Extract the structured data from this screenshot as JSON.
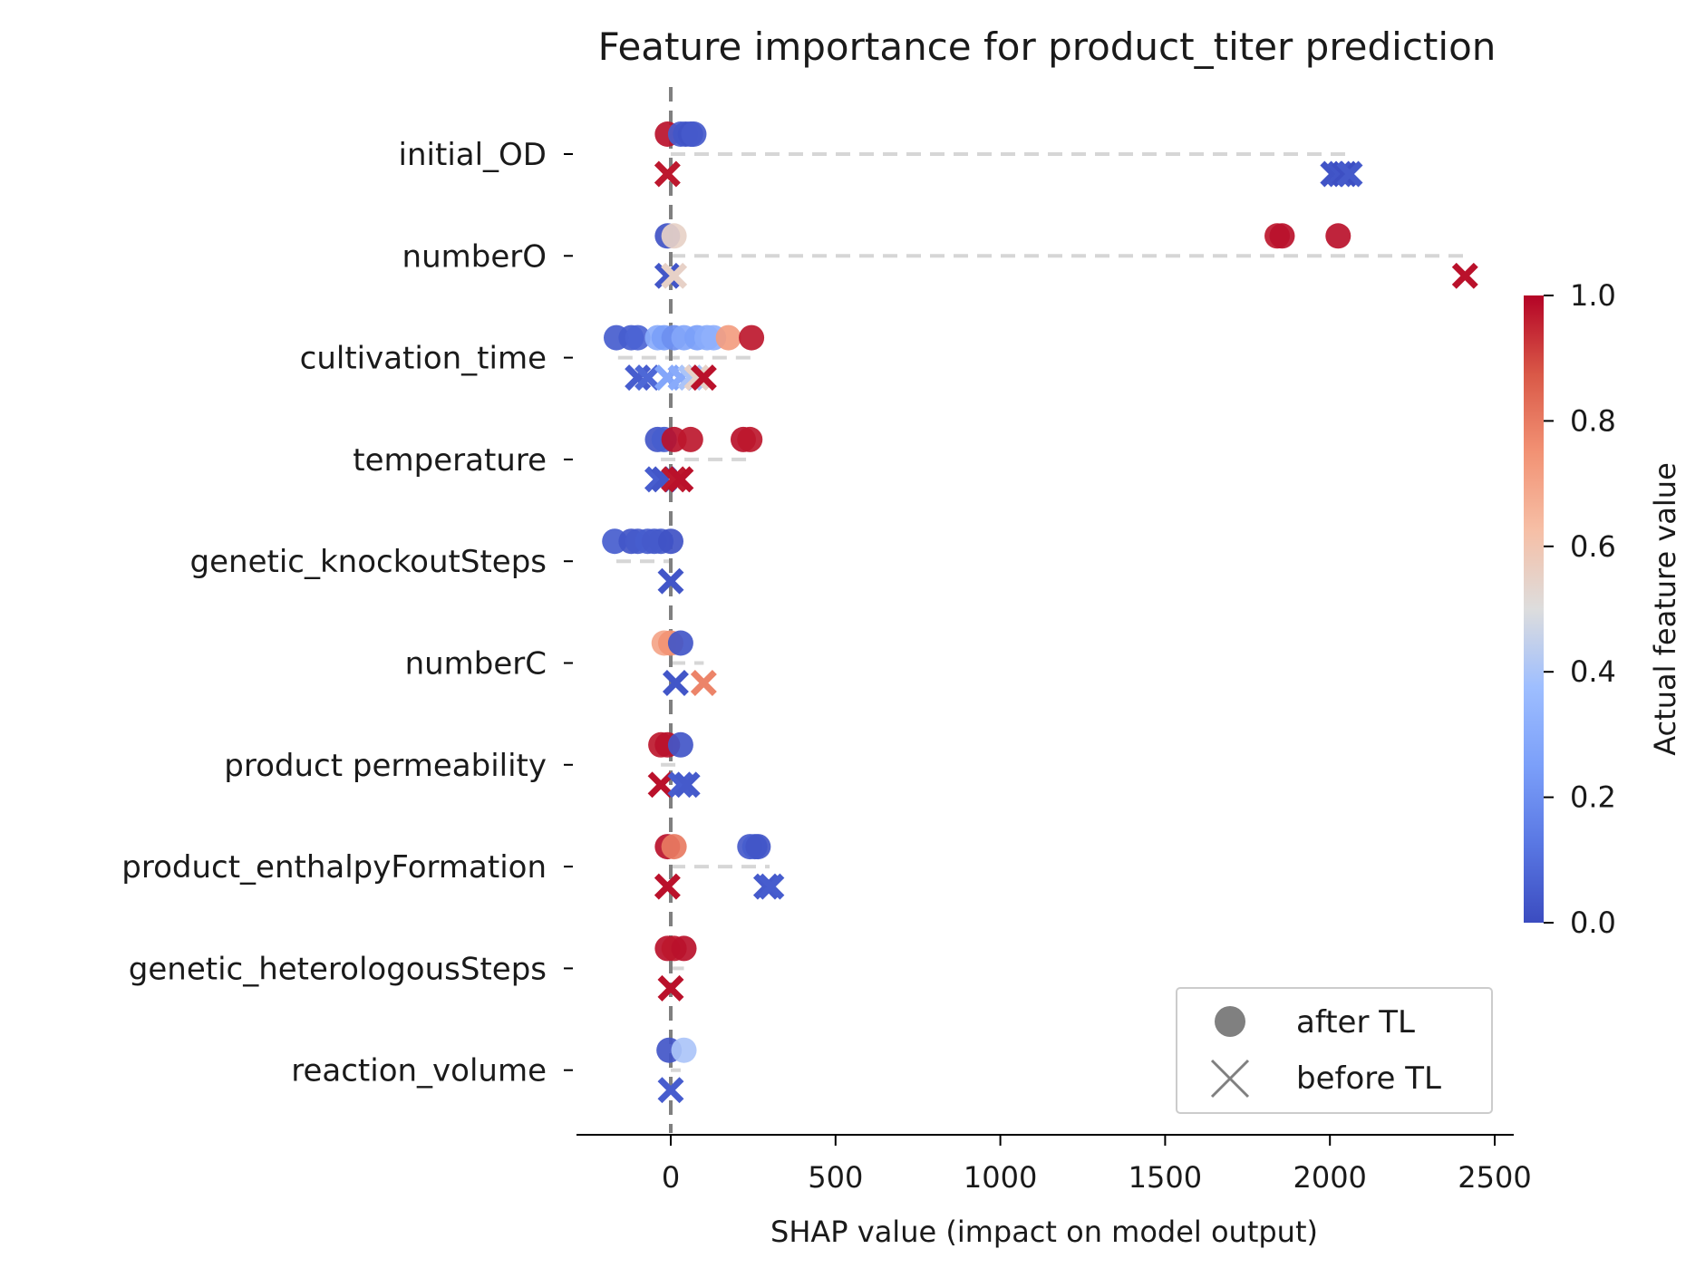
{
  "chart_data": {
    "type": "scatter",
    "title": "Feature importance for product_titer prediction",
    "xlabel": "SHAP value (impact on model output)",
    "ylabel": "",
    "xlim": [
      -290,
      2540
    ],
    "xticks": [
      0,
      500,
      1000,
      1500,
      2000,
      2500
    ],
    "colormap": "coolwarm",
    "colorbar": {
      "label": "Actual feature value",
      "range": [
        0.0,
        1.0
      ],
      "ticks": [
        "0.0",
        "0.2",
        "0.4",
        "0.6",
        "0.8",
        "1.0"
      ],
      "low_color": "#3b4cc0",
      "mid_color": "#dddddd",
      "high_color": "#b40426"
    },
    "reference_line": {
      "x": 0,
      "style": "dashed",
      "color": "#808080"
    },
    "legend": {
      "position": "bottom-right",
      "entries": [
        {
          "marker": "circle",
          "label": "after TL"
        },
        {
          "marker": "x",
          "label": "before TL"
        }
      ]
    },
    "features": [
      {
        "name": "initial_OD",
        "range_line": [
          0,
          2050
        ],
        "after": [
          [
            -10,
            0.98
          ],
          [
            30,
            0.05
          ],
          [
            45,
            0.03
          ],
          [
            60,
            0.02
          ],
          [
            70,
            0.04
          ]
        ],
        "before": [
          [
            -10,
            0.97
          ],
          [
            2010,
            0.02
          ],
          [
            2030,
            0.03
          ],
          [
            2045,
            0.01
          ],
          [
            2060,
            0.04
          ]
        ]
      },
      {
        "name": "numberO",
        "range_line": [
          0,
          2410
        ],
        "after": [
          [
            -10,
            0.02
          ],
          [
            10,
            0.55
          ],
          [
            1840,
            0.97
          ],
          [
            1855,
            0.98
          ],
          [
            2025,
            0.98
          ]
        ],
        "before": [
          [
            -10,
            0.03
          ],
          [
            10,
            0.55
          ],
          [
            2410,
            0.98
          ]
        ]
      },
      {
        "name": "cultivation_time",
        "range_line": [
          -160,
          250
        ],
        "after": [
          [
            -165,
            0.05
          ],
          [
            -120,
            0.05
          ],
          [
            -100,
            0.07
          ],
          [
            -40,
            0.3
          ],
          [
            -20,
            0.25
          ],
          [
            10,
            0.2
          ],
          [
            40,
            0.28
          ],
          [
            80,
            0.25
          ],
          [
            110,
            0.3
          ],
          [
            130,
            0.32
          ],
          [
            175,
            0.72
          ],
          [
            245,
            0.97
          ]
        ],
        "before": [
          [
            -100,
            0.05
          ],
          [
            -70,
            0.08
          ],
          [
            -10,
            0.28
          ],
          [
            30,
            0.3
          ],
          [
            60,
            0.4
          ],
          [
            80,
            0.55
          ],
          [
            100,
            0.98
          ]
        ]
      },
      {
        "name": "temperature",
        "range_line": [
          -30,
          230
        ],
        "after": [
          [
            -40,
            0.03
          ],
          [
            -20,
            0.05
          ],
          [
            10,
            0.98
          ],
          [
            60,
            0.97
          ],
          [
            220,
            0.98
          ],
          [
            240,
            0.97
          ]
        ],
        "before": [
          [
            -40,
            0.05
          ],
          [
            -20,
            0.03
          ],
          [
            10,
            0.97
          ],
          [
            30,
            0.98
          ]
        ]
      },
      {
        "name": "genetic_knockoutSteps",
        "range_line": [
          -165,
          0
        ],
        "after": [
          [
            -170,
            0.05
          ],
          [
            -120,
            0.03
          ],
          [
            -100,
            0.04
          ],
          [
            -70,
            0.05
          ],
          [
            -50,
            0.04
          ],
          [
            -30,
            0.04
          ],
          [
            0,
            0.02
          ]
        ],
        "before": [
          [
            0,
            0.03
          ]
        ]
      },
      {
        "name": "numberC",
        "range_line": [
          0,
          100
        ],
        "after": [
          [
            -20,
            0.7
          ],
          [
            0,
            0.75
          ],
          [
            30,
            0.03
          ]
        ],
        "before": [
          [
            15,
            0.03
          ],
          [
            100,
            0.78
          ]
        ]
      },
      {
        "name": "product permeability",
        "range_line": [
          -30,
          40
        ],
        "after": [
          [
            -30,
            0.97
          ],
          [
            -10,
            0.98
          ],
          [
            30,
            0.03
          ]
        ],
        "before": [
          [
            -30,
            0.98
          ],
          [
            30,
            0.05
          ],
          [
            50,
            0.04
          ]
        ]
      },
      {
        "name": "product_enthalpyFormation",
        "range_line": [
          0,
          300
        ],
        "after": [
          [
            -10,
            0.98
          ],
          [
            10,
            0.8
          ],
          [
            240,
            0.04
          ],
          [
            255,
            0.05
          ],
          [
            265,
            0.03
          ]
        ],
        "before": [
          [
            -10,
            0.98
          ],
          [
            290,
            0.04
          ],
          [
            305,
            0.05
          ]
        ]
      },
      {
        "name": "genetic_heterologousSteps",
        "range_line": [
          0,
          40
        ],
        "after": [
          [
            -10,
            0.98
          ],
          [
            10,
            0.97
          ],
          [
            40,
            0.98
          ]
        ],
        "before": [
          [
            0,
            0.98
          ]
        ]
      },
      {
        "name": "reaction_volume",
        "range_line": [
          0,
          30
        ],
        "after": [
          [
            -5,
            0.03
          ],
          [
            40,
            0.4
          ]
        ],
        "before": [
          [
            0,
            0.05
          ]
        ]
      }
    ]
  }
}
